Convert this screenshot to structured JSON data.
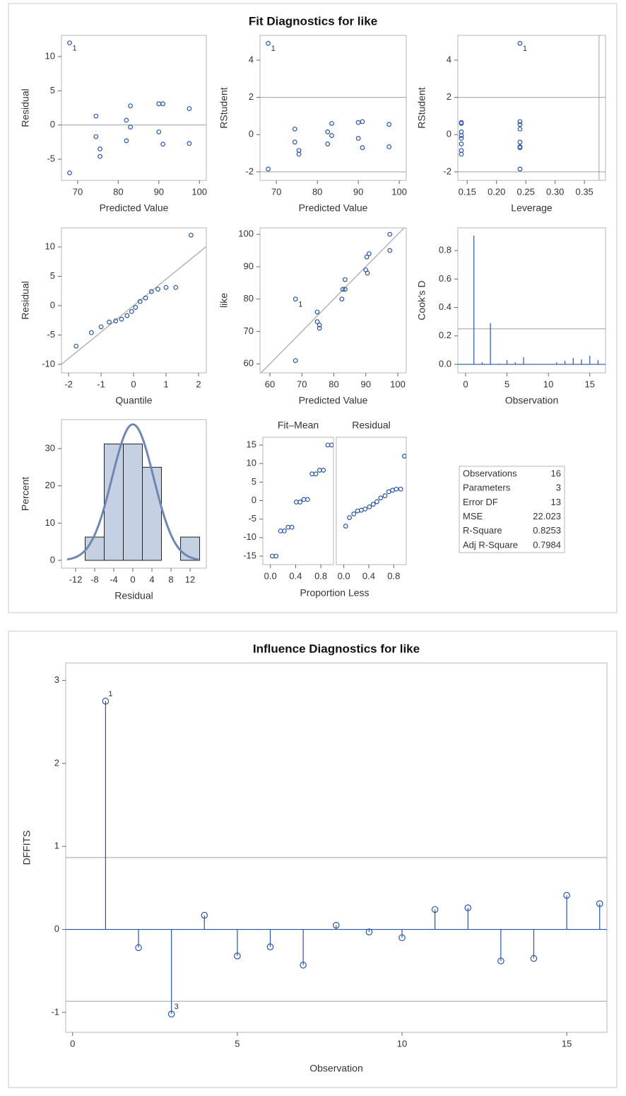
{
  "fit_title": "Fit Diagnostics for like",
  "fit_statistics": [
    {
      "label": "Observations",
      "value": 16
    },
    {
      "label": "Parameters",
      "value": 3
    },
    {
      "label": "Error DF",
      "value": 13
    },
    {
      "label": "MSE",
      "value": 22.023
    },
    {
      "label": "R-Square",
      "value": 0.8253
    },
    {
      "label": "Adj R-Square",
      "value": 0.7984
    }
  ],
  "chart_data": [
    {
      "type": "scatter",
      "xlabel": "Predicted Value",
      "ylabel": "Residual",
      "xlim": [
        66,
        101.7
      ],
      "ylim": [
        -8.1,
        13.1
      ],
      "xticks": [
        70,
        80,
        90,
        100
      ],
      "yticks": [
        -5,
        0,
        5,
        10
      ],
      "hlines": [
        0
      ],
      "color": "#2a56a6",
      "x": [
        68,
        68,
        74.5,
        74.5,
        75.5,
        75.5,
        82,
        82,
        83,
        83,
        90,
        91,
        90,
        91,
        97.5,
        97.5
      ],
      "values": [
        12,
        -7,
        1.3,
        -1.7,
        -3.5,
        -4.6,
        0.7,
        -2.3,
        2.8,
        -0.3,
        3.1,
        3.1,
        -1,
        -2.8,
        2.4,
        -2.7
      ],
      "point_labels": [
        "1",
        null,
        null,
        null,
        null,
        null,
        null,
        null,
        null,
        null,
        null,
        null,
        null,
        null,
        null,
        null
      ]
    },
    {
      "type": "scatter",
      "xlabel": "Predicted Value",
      "ylabel": "RStudent",
      "xlim": [
        66,
        101.7
      ],
      "ylim": [
        -2.46,
        5.33
      ],
      "xticks": [
        70,
        80,
        90,
        100
      ],
      "yticks": [
        -2,
        0,
        2,
        4
      ],
      "hlines": [
        -2,
        2
      ],
      "color": "#2a56a6",
      "x": [
        68,
        68,
        74.5,
        74.5,
        75.5,
        75.5,
        82.5,
        82.5,
        83.5,
        83.5,
        90,
        91,
        90,
        91,
        97.5,
        97.5
      ],
      "values": [
        4.9,
        -1.85,
        0.3,
        -0.4,
        -0.85,
        -1.05,
        0.15,
        -0.5,
        0.6,
        -0.05,
        0.65,
        0.7,
        -0.2,
        -0.7,
        0.55,
        -0.65
      ],
      "point_labels": [
        "1",
        null,
        null,
        null,
        null,
        null,
        null,
        null,
        null,
        null,
        null,
        null,
        null,
        null,
        null,
        null
      ]
    },
    {
      "type": "scatter",
      "xlabel": "Leverage",
      "ylabel": "RStudent",
      "xlim": [
        0.134,
        0.386
      ],
      "ylim": [
        -2.46,
        5.33
      ],
      "xticks": [
        0.15,
        {
          "value": 0.2,
          "label": "0.20"
        },
        0.25,
        {
          "value": 0.3,
          "label": "0.30"
        },
        0.35
      ],
      "yticks": [
        -2,
        0,
        2,
        4
      ],
      "hlines": [
        -2,
        2
      ],
      "vlines": [
        0.375
      ],
      "color": "#2a56a6",
      "x": [
        0.24,
        0.24,
        0.24,
        0.24,
        0.14,
        0.14,
        0.14,
        0.14,
        0.14,
        0.14,
        0.14,
        0.24,
        0.14,
        0.24,
        0.24,
        0.24
      ],
      "values": [
        4.9,
        -1.85,
        0.3,
        -0.4,
        -0.85,
        -1.05,
        0.15,
        -0.5,
        0.6,
        -0.05,
        0.65,
        0.7,
        -0.2,
        -0.7,
        0.55,
        -0.65
      ],
      "point_labels": [
        "1",
        null,
        null,
        null,
        null,
        null,
        null,
        null,
        null,
        null,
        null,
        null,
        null,
        null,
        null,
        null
      ]
    },
    {
      "type": "scatter",
      "xlabel": "Quantile",
      "ylabel": "Residual",
      "xlim": [
        -2.22,
        2.24
      ],
      "ylim": [
        -11.45,
        13.25
      ],
      "xticks": [
        -2,
        -1,
        0,
        1,
        2
      ],
      "yticks": [
        -10,
        -5,
        0,
        5,
        10
      ],
      "color": "#2a56a6",
      "fit_line": {
        "intercept": 0,
        "slope": 4.5
      },
      "x": [
        -1.77,
        -1.3,
        -1.0,
        -0.75,
        -0.55,
        -0.37,
        -0.2,
        -0.06,
        0.06,
        0.2,
        0.37,
        0.55,
        0.75,
        1.0,
        1.3,
        1.77
      ],
      "values": [
        -6.9,
        -4.6,
        -3.6,
        -2.8,
        -2.6,
        -2.3,
        -1.7,
        -1.0,
        -0.3,
        0.7,
        1.3,
        2.4,
        2.8,
        3.1,
        3.1,
        12
      ]
    },
    {
      "type": "scatter",
      "xlabel": "Predicted Value",
      "ylabel": "like",
      "xlim": [
        56.9,
        102.65
      ],
      "ylim": [
        57.2,
        102
      ],
      "xticks": [
        60,
        70,
        80,
        90,
        100
      ],
      "yticks": [
        60,
        70,
        80,
        90,
        100
      ],
      "color": "#2a56a6",
      "fit_line": {
        "intercept": 0,
        "slope": 1
      },
      "x": [
        68,
        68,
        74.8,
        74.8,
        75.5,
        75.5,
        82.5,
        82.8,
        83.5,
        83.5,
        90,
        90.5,
        90.3,
        91,
        97.5,
        97.5
      ],
      "values": [
        80,
        61,
        76,
        73,
        72,
        71,
        80,
        83,
        83,
        86,
        89,
        88,
        93,
        94,
        100,
        95
      ],
      "point_labels": [
        "1",
        null,
        null,
        null,
        null,
        null,
        null,
        null,
        null,
        null,
        null,
        null,
        null,
        null,
        null,
        null
      ]
    },
    {
      "type": "needle",
      "xlabel": "Observation",
      "ylabel": "Cook's D",
      "markers": false,
      "xlim": [
        -0.94,
        16.9
      ],
      "ylim": [
        -0.06,
        0.96
      ],
      "xticks": [
        0,
        5,
        10,
        15
      ],
      "yticks": [
        {
          "value": 0,
          "label": "0.0"
        },
        0.2,
        0.4,
        0.6,
        0.8
      ],
      "hlines": [
        0.25
      ],
      "color": "#2a56a6",
      "x": [
        1,
        2,
        3,
        4,
        5,
        6,
        7,
        8,
        9,
        10,
        11,
        12,
        13,
        14,
        15,
        16
      ],
      "values": [
        0.905,
        0.015,
        0.29,
        0.005,
        0.03,
        0.015,
        0.05,
        0.002,
        0.001,
        0.002,
        0.015,
        0.025,
        0.045,
        0.035,
        0.06,
        0.03
      ]
    },
    {
      "type": "histogram",
      "xlabel": "Residual",
      "ylabel": "Percent",
      "xlim": [
        -14.96,
        15.4
      ],
      "ylim": [
        -2.1,
        37.8
      ],
      "xticks": [
        -12,
        -8,
        -4,
        0,
        4,
        8,
        12
      ],
      "yticks": [
        0,
        10,
        20,
        30
      ],
      "color": "#c5d1e3",
      "curve_color": "#6f87b3",
      "bins": [
        -10,
        -6,
        -2,
        2,
        6,
        10,
        14
      ],
      "values": [
        6.25,
        31.25,
        31.25,
        25,
        0,
        6.25
      ],
      "normal_curve": {
        "mean": 0,
        "sd": 4.37
      }
    },
    {
      "type": "spread",
      "xlabel": "Proportion Less",
      "color": "#2a56a6",
      "xlim": [
        -0.12,
        1.0
      ],
      "ylim": [
        -17.3,
        17.1
      ],
      "xticks": [
        {
          "value": 0,
          "label": "0.0"
        },
        0.4,
        0.8
      ],
      "yticks": [
        -15,
        -10,
        -5,
        0,
        5,
        10,
        15
      ],
      "panels": [
        {
          "title": "Fit–Mean",
          "x": [
            0.03,
            0.09,
            0.16,
            0.22,
            0.28,
            0.34,
            0.41,
            0.47,
            0.53,
            0.59,
            0.66,
            0.72,
            0.78,
            0.84,
            0.91,
            0.97
          ],
          "values": [
            -15,
            -15,
            -8.2,
            -8.2,
            -7.2,
            -7.2,
            -0.4,
            -0.4,
            0.3,
            0.3,
            7.2,
            7.2,
            8.2,
            8.2,
            15,
            15
          ]
        },
        {
          "title": "Residual",
          "x": [
            0.03,
            0.09,
            0.16,
            0.22,
            0.28,
            0.34,
            0.41,
            0.47,
            0.53,
            0.59,
            0.66,
            0.72,
            0.78,
            0.84,
            0.91,
            0.97
          ],
          "values": [
            -6.9,
            -4.6,
            -3.6,
            -2.8,
            -2.6,
            -2.3,
            -1.7,
            -1.0,
            -0.3,
            0.7,
            1.3,
            2.4,
            2.8,
            3.1,
            3.1,
            12
          ]
        }
      ]
    },
    {
      "type": "needle",
      "title": "Influence Diagnostics for like",
      "xlabel": "Observation",
      "ylabel": "DFFITS",
      "markers": true,
      "xlim": [
        -0.21,
        16.22
      ],
      "ylim": [
        -1.24,
        3.21
      ],
      "xticks": [
        0,
        5,
        10,
        15
      ],
      "yticks": [
        -1,
        0,
        1,
        2,
        3
      ],
      "hlines": [
        -0.866,
        0.866
      ],
      "color": "#2a56a6",
      "x": [
        1,
        2,
        3,
        4,
        5,
        6,
        7,
        8,
        9,
        10,
        11,
        12,
        13,
        14,
        15,
        16
      ],
      "values": [
        2.75,
        -0.22,
        -1.02,
        0.17,
        -0.32,
        -0.21,
        -0.43,
        0.05,
        -0.03,
        -0.1,
        0.24,
        0.26,
        -0.38,
        -0.35,
        0.41,
        0.31
      ],
      "point_labels": [
        "1",
        null,
        "3",
        null,
        null,
        null,
        null,
        null,
        null,
        null,
        null,
        null,
        null,
        null,
        null,
        null
      ]
    }
  ]
}
